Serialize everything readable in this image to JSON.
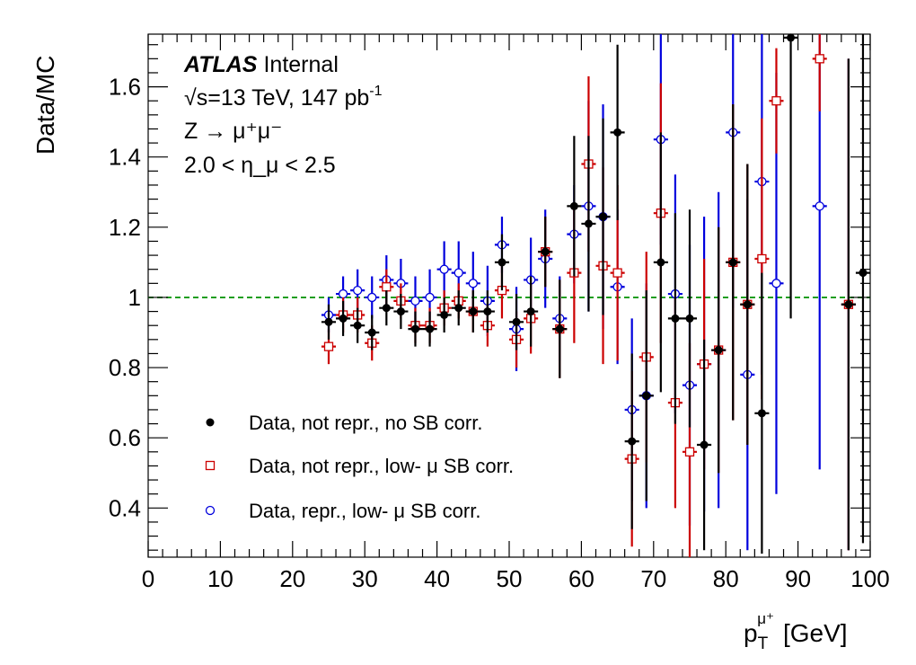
{
  "chart_data": {
    "type": "scatter",
    "xlabel_main": "p",
    "xlabel_sub": "T",
    "xlabel_sup": "μ⁺",
    "xlabel_unit": "[GeV]",
    "ylabel": "Data/MC",
    "xlim": [
      0,
      100
    ],
    "ylim": [
      0.26,
      1.75
    ],
    "x_ticks": [
      0,
      10,
      20,
      30,
      40,
      50,
      60,
      70,
      80,
      90,
      100
    ],
    "y_ticks": [
      0.4,
      0.6,
      0.8,
      1,
      1.2,
      1.4,
      1.6
    ],
    "y_tick_labels": [
      "0.4",
      "0.6",
      "0.8",
      "1",
      "1.2",
      "1.4",
      "1.6"
    ],
    "reference_line": {
      "y": 1.0,
      "color": "#1f9e1f"
    },
    "annotations": {
      "experiment": "ATLAS",
      "status": "Internal",
      "energy_prefix": "√s=13 TeV, 147 pb",
      "energy_sup": "-1",
      "process": "Z → μ⁺μ⁻",
      "eta_range": "2.0 < η_μ < 2.5"
    },
    "series": [
      {
        "name": "Data, not repr., no SB corr.",
        "color": "#000000",
        "marker": "filled-circle",
        "x": [
          25,
          27,
          29,
          31,
          33,
          35,
          37,
          39,
          41,
          43,
          45,
          47,
          49,
          51,
          53,
          55,
          57,
          59,
          61,
          63,
          65,
          67,
          69,
          71,
          73,
          75,
          77,
          79,
          81,
          83,
          85,
          89,
          97,
          99
        ],
        "y": [
          0.93,
          0.94,
          0.92,
          0.9,
          0.97,
          0.96,
          0.91,
          0.91,
          0.95,
          0.97,
          0.96,
          0.96,
          1.1,
          0.93,
          0.96,
          1.13,
          0.91,
          1.26,
          1.21,
          1.23,
          1.47,
          0.59,
          0.72,
          1.1,
          0.94,
          0.94,
          0.58,
          0.85,
          1.1,
          0.98,
          0.67,
          1.74,
          0.98,
          1.07
        ],
        "err": [
          0.05,
          0.05,
          0.05,
          0.05,
          0.05,
          0.05,
          0.05,
          0.05,
          0.05,
          0.05,
          0.06,
          0.06,
          0.08,
          0.08,
          0.1,
          0.1,
          0.14,
          0.2,
          0.25,
          0.28,
          0.25,
          0.25,
          0.3,
          0.37,
          0.3,
          0.31,
          0.3,
          0.35,
          0.45,
          0.4,
          0.4,
          0.8,
          0.7,
          0.77
        ]
      },
      {
        "name": "Data, not repr., low- μ SB corr.",
        "color": "#cc0000",
        "marker": "open-square",
        "x": [
          25,
          27,
          29,
          31,
          33,
          35,
          37,
          39,
          41,
          43,
          45,
          47,
          49,
          51,
          53,
          55,
          57,
          59,
          61,
          63,
          65,
          67,
          69,
          71,
          73,
          75,
          77,
          79,
          81,
          83,
          85,
          87,
          93,
          97
        ],
        "y": [
          0.86,
          0.95,
          0.95,
          0.87,
          1.03,
          0.99,
          0.92,
          0.92,
          0.97,
          0.99,
          0.96,
          0.92,
          1.02,
          0.88,
          0.94,
          1.13,
          0.91,
          1.07,
          1.38,
          1.09,
          1.07,
          0.54,
          0.83,
          1.24,
          0.7,
          0.56,
          0.81,
          0.85,
          1.1,
          0.98,
          1.11,
          1.56,
          1.68,
          0.98
        ]
      },
      {
        "name": "Data, repr., low- μ SB corr.",
        "color": "#0000dd",
        "marker": "open-circle",
        "x": [
          25,
          27,
          29,
          31,
          33,
          35,
          37,
          39,
          41,
          43,
          45,
          47,
          49,
          51,
          53,
          55,
          57,
          59,
          61,
          63,
          65,
          67,
          69,
          71,
          73,
          75,
          77,
          79,
          81,
          83,
          85,
          87,
          93,
          97
        ],
        "y": [
          0.95,
          1.01,
          1.02,
          1.0,
          1.05,
          1.04,
          0.99,
          1.0,
          1.08,
          1.07,
          1.04,
          0.99,
          1.15,
          0.91,
          1.05,
          1.11,
          0.94,
          1.18,
          1.26,
          1.23,
          1.03,
          0.68,
          0.72,
          1.45,
          1.01,
          0.75,
          0.81,
          0.85,
          1.47,
          0.78,
          1.33,
          1.04,
          1.26,
          0.98
        ],
        "err": [
          0.05,
          0.05,
          0.06,
          0.06,
          0.07,
          0.07,
          0.07,
          0.08,
          0.08,
          0.09,
          0.09,
          0.1,
          0.08,
          0.12,
          0.12,
          0.14,
          0.12,
          0.14,
          0.3,
          0.32,
          0.22,
          0.26,
          0.32,
          0.3,
          0.34,
          0.4,
          0.42,
          0.45,
          0.5,
          0.5,
          0.55,
          0.6,
          0.75,
          0.7
        ]
      }
    ],
    "legend": {
      "placement": "bottom-left"
    }
  }
}
